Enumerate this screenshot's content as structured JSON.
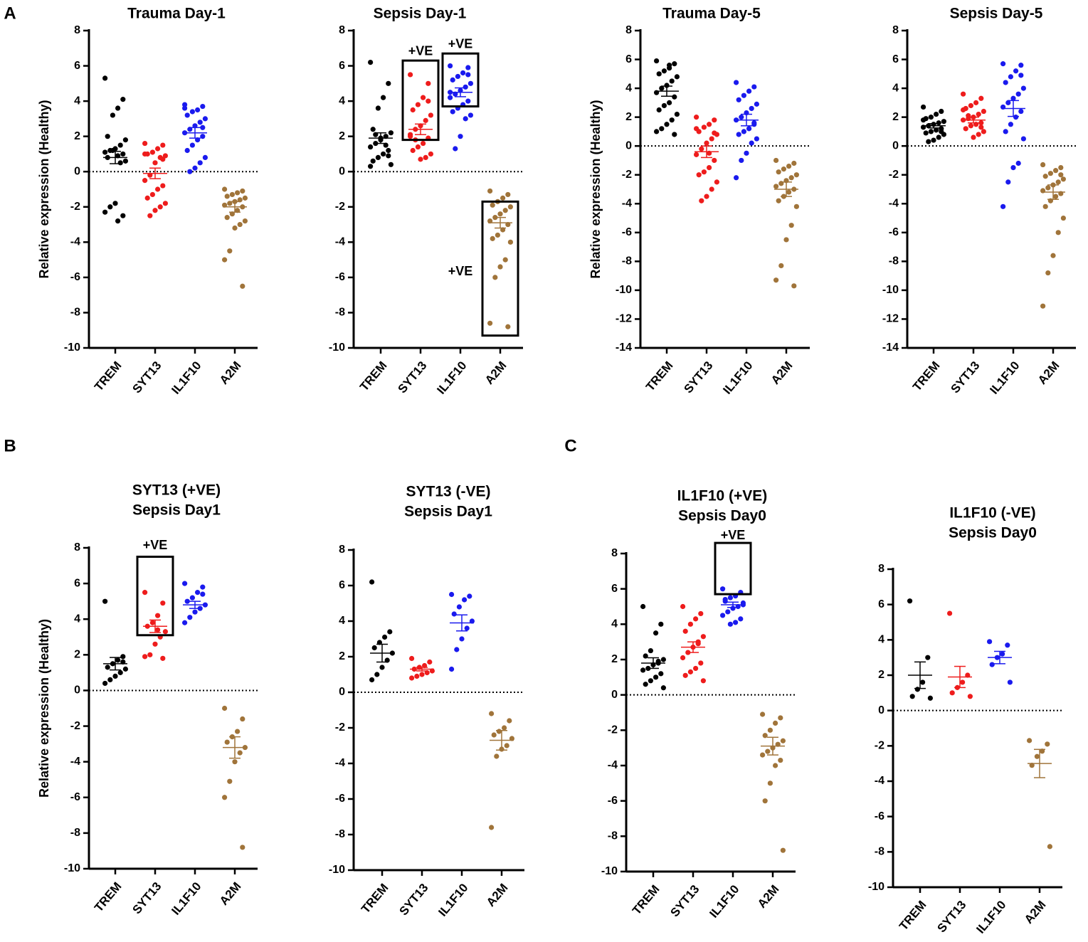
{
  "panel_labels": [
    "A",
    "B",
    "C"
  ],
  "chart_data": [
    {
      "type": "strip",
      "title": [
        "Trauma Day-1"
      ],
      "ylabel": "Relative expression (Healthy)",
      "ylim": [
        -10,
        8
      ],
      "yticks": [
        -10,
        -8,
        -6,
        -4,
        -2,
        0,
        2,
        4,
        6,
        8
      ],
      "hline": 0,
      "series": [
        {
          "name": "TREM",
          "color": "#000000",
          "values": [
            5.3,
            4.1,
            3.6,
            3.2,
            2.0,
            1.8,
            1.5,
            1.3,
            1.2,
            1.1,
            1.0,
            0.9,
            1.2,
            0.8,
            0.6,
            0.5,
            -1.8,
            -2.0,
            -2.3,
            -2.5,
            -2.8
          ],
          "mean": 0.8,
          "sem": 0.35
        },
        {
          "name": "SYT13",
          "color": "#ee1c1c",
          "values": [
            1.6,
            1.5,
            1.3,
            1.1,
            1.0,
            0.9,
            0.8,
            0.5,
            -0.2,
            -0.5,
            -0.8,
            -1.0,
            -1.3,
            -1.5,
            -1.8,
            -2.0,
            -2.2,
            -2.5,
            1.0,
            0.7
          ],
          "mean": -0.1,
          "sem": 0.3
        },
        {
          "name": "IL1F10",
          "color": "#1a1aee",
          "values": [
            3.8,
            3.7,
            3.5,
            3.4,
            3.2,
            3.0,
            2.8,
            2.6,
            2.4,
            2.2,
            2.0,
            1.8,
            1.5,
            1.2,
            0.8,
            0.5,
            0.2,
            0,
            3.6,
            2.5
          ],
          "mean": 2.2,
          "sem": 0.3
        },
        {
          "name": "A2M",
          "color": "#a0743a",
          "values": [
            -1.0,
            -1.1,
            -1.2,
            -1.3,
            -1.4,
            -1.5,
            -1.6,
            -1.7,
            -1.8,
            -1.9,
            -2.0,
            -2.2,
            -2.4,
            -2.6,
            -2.8,
            -3.0,
            -3.2,
            -4.5,
            -5.0,
            -6.5
          ],
          "mean": -2.0,
          "sem": 0.3
        }
      ]
    },
    {
      "type": "strip",
      "title": [
        "Sepsis Day-1"
      ],
      "ylim": [
        -10,
        8
      ],
      "yticks": [
        -10,
        -8,
        -6,
        -4,
        -2,
        0,
        2,
        4,
        6,
        8
      ],
      "hline": 0,
      "series": [
        {
          "name": "TREM",
          "color": "#000000",
          "values": [
            6.2,
            5.0,
            4.2,
            3.6,
            2.4,
            2.2,
            2.0,
            1.8,
            1.6,
            1.4,
            1.2,
            1.0,
            0.8,
            0.6,
            0.4,
            1.5,
            1.9,
            2.1,
            0.3,
            0.9
          ],
          "mean": 1.9,
          "sem": 0.3
        },
        {
          "name": "SYT13",
          "color": "#ee1c1c",
          "values": [
            5.5,
            5.0,
            4.2,
            3.8,
            3.5,
            3.2,
            2.9,
            2.6,
            2.4,
            2.1,
            1.9,
            1.6,
            1.4,
            1.2,
            1.0,
            0.8,
            0.7,
            1.8,
            2.0,
            4.0
          ],
          "mean": 2.4,
          "sem": 0.3
        },
        {
          "name": "IL1F10",
          "color": "#1a1aee",
          "values": [
            6.0,
            5.9,
            5.6,
            5.4,
            5.2,
            5.0,
            4.8,
            4.6,
            4.4,
            4.2,
            4.0,
            3.8,
            3.6,
            3.4,
            3.2,
            3.0,
            2.0,
            1.3,
            4.5,
            5.5
          ],
          "mean": 4.5,
          "sem": 0.25
        },
        {
          "name": "A2M",
          "color": "#a0743a",
          "values": [
            -1.1,
            -1.3,
            -1.5,
            -1.7,
            -1.9,
            -2.0,
            -2.2,
            -2.4,
            -2.6,
            -2.8,
            -3.0,
            -3.3,
            -3.6,
            -3.8,
            -4.0,
            -5.0,
            -5.4,
            -6.0,
            -8.6,
            -8.8
          ],
          "mean": -2.9,
          "sem": 0.3
        }
      ],
      "annotations": [
        {
          "text": "+VE",
          "box_category": 1,
          "box_y": [
            1.8,
            6.3
          ],
          "text_category": 1,
          "text_y": 6.8
        },
        {
          "text": "+VE",
          "box_category": 2,
          "box_y": [
            3.7,
            6.7
          ],
          "text_category": 2,
          "text_y": 7.2
        },
        {
          "text": "+VE",
          "box_category": 3,
          "box_y": [
            -9.3,
            -1.7
          ],
          "text_category": 2,
          "text_y": -5.7
        }
      ]
    },
    {
      "type": "strip",
      "title": [
        "Trauma Day-5"
      ],
      "ylabel": "Relative expression (Healthy)",
      "ylim": [
        -14,
        8
      ],
      "yticks": [
        -14,
        -12,
        -10,
        -8,
        -6,
        -4,
        -2,
        0,
        2,
        4,
        6,
        8
      ],
      "hline": 0,
      "series": [
        {
          "name": "TREM",
          "color": "#000000",
          "values": [
            5.9,
            5.7,
            5.4,
            5.2,
            5.0,
            4.8,
            4.5,
            4.2,
            4.0,
            3.7,
            3.4,
            3.0,
            2.8,
            2.5,
            2.2,
            1.8,
            1.5,
            1.2,
            1.0,
            0.8,
            5.6
          ],
          "mean": 3.8,
          "sem": 0.35
        },
        {
          "name": "SYT13",
          "color": "#ee1c1c",
          "values": [
            2.0,
            1.8,
            1.5,
            1.3,
            1.0,
            0.8,
            0.5,
            0.2,
            -0.2,
            -0.6,
            -1.0,
            -1.5,
            -1.8,
            -2.0,
            -2.5,
            -3.0,
            -3.5,
            -3.8,
            1.2,
            0.9,
            -0.5
          ],
          "mean": -0.4,
          "sem": 0.4
        },
        {
          "name": "IL1F10",
          "color": "#1a1aee",
          "values": [
            4.4,
            4.1,
            3.8,
            3.5,
            3.2,
            2.9,
            2.6,
            2.3,
            2.0,
            1.8,
            1.5,
            1.2,
            1.0,
            0.8,
            0.5,
            0.2,
            -0.5,
            -1.0,
            -2.2,
            1.6
          ],
          "mean": 1.8,
          "sem": 0.4
        },
        {
          "name": "A2M",
          "color": "#a0743a",
          "values": [
            -1.0,
            -1.2,
            -1.4,
            -1.6,
            -1.8,
            -2.0,
            -2.2,
            -2.4,
            -2.6,
            -2.8,
            -3.0,
            -3.2,
            -3.5,
            -3.8,
            -4.2,
            -5.5,
            -6.5,
            -8.3,
            -9.3,
            -9.7
          ],
          "mean": -3.0,
          "sem": 0.5
        }
      ]
    },
    {
      "type": "strip",
      "title": [
        "Sepsis Day-5"
      ],
      "ylim": [
        -14,
        8
      ],
      "yticks": [
        -14,
        -12,
        -10,
        -8,
        -6,
        -4,
        -2,
        0,
        2,
        4,
        6,
        8
      ],
      "hline": 0,
      "series": [
        {
          "name": "TREM",
          "color": "#000000",
          "values": [
            2.7,
            2.4,
            2.2,
            2.0,
            1.9,
            1.7,
            1.6,
            1.5,
            1.4,
            1.3,
            1.2,
            1.1,
            1.0,
            0.9,
            0.8,
            0.6,
            0.4,
            0.3,
            1.8,
            1.0
          ],
          "mean": 1.4,
          "sem": 0.15
        },
        {
          "name": "SYT13",
          "color": "#ee1c1c",
          "values": [
            3.6,
            3.3,
            3.0,
            2.8,
            2.6,
            2.4,
            2.2,
            2.0,
            1.9,
            1.8,
            1.6,
            1.5,
            1.4,
            1.2,
            1.0,
            0.8,
            0.6,
            2.1,
            2.5,
            1.3
          ],
          "mean": 1.8,
          "sem": 0.2
        },
        {
          "name": "IL1F10",
          "color": "#1a1aee",
          "values": [
            5.7,
            5.6,
            5.2,
            4.8,
            4.4,
            4.0,
            3.6,
            3.3,
            3.0,
            2.7,
            2.4,
            2.0,
            1.5,
            1.0,
            0.5,
            -1.2,
            -1.5,
            -2.5,
            -4.2,
            4.9
          ],
          "mean": 2.6,
          "sem": 0.55
        },
        {
          "name": "A2M",
          "color": "#a0743a",
          "values": [
            -1.3,
            -1.5,
            -1.7,
            -1.9,
            -2.1,
            -2.3,
            -2.5,
            -2.7,
            -2.9,
            -3.1,
            -3.3,
            -3.5,
            -3.8,
            -4.2,
            -5.0,
            -6.0,
            -7.6,
            -8.8,
            -11.1,
            -2.0
          ],
          "mean": -3.2,
          "sem": 0.5
        }
      ]
    },
    {
      "type": "strip",
      "title": [
        "SYT13 (+VE)",
        "Sepsis Day1"
      ],
      "ylabel": "Relative expression (Healthy)",
      "ylim": [
        -10,
        8
      ],
      "yticks": [
        -10,
        -8,
        -6,
        -4,
        -2,
        0,
        2,
        4,
        6,
        8
      ],
      "hline": 0,
      "series": [
        {
          "name": "TREM",
          "color": "#000000",
          "values": [
            5.0,
            1.9,
            1.7,
            1.5,
            1.3,
            1.2,
            1.0,
            0.8,
            0.6,
            0.4,
            1.6
          ],
          "mean": 1.5,
          "sem": 0.35
        },
        {
          "name": "SYT13",
          "color": "#ee1c1c",
          "values": [
            5.5,
            4.9,
            4.2,
            3.8,
            3.6,
            3.3,
            3.0,
            2.6,
            2.0,
            1.9,
            1.8,
            3.4
          ],
          "mean": 3.6,
          "sem": 0.35
        },
        {
          "name": "IL1F10",
          "color": "#1a1aee",
          "values": [
            6.0,
            5.8,
            5.5,
            5.2,
            5.0,
            4.8,
            4.6,
            4.4,
            4.1,
            3.8,
            5.4
          ],
          "mean": 4.8,
          "sem": 0.2
        },
        {
          "name": "A2M",
          "color": "#a0743a",
          "values": [
            -1.0,
            -1.6,
            -2.3,
            -2.6,
            -2.9,
            -3.2,
            -3.5,
            -4.0,
            -5.1,
            -6.0,
            -8.8
          ],
          "mean": -3.2,
          "sem": 0.6
        }
      ],
      "annotations": [
        {
          "text": "+VE",
          "box_category": 1,
          "box_y": [
            3.1,
            7.5
          ],
          "text_category": 1,
          "text_y": 8.1
        }
      ]
    },
    {
      "type": "strip",
      "title": [
        "SYT13 (-VE)",
        "Sepsis Day1"
      ],
      "ylim": [
        -10,
        8
      ],
      "yticks": [
        -10,
        -8,
        -6,
        -4,
        -2,
        0,
        2,
        4,
        6,
        8
      ],
      "hline": 0,
      "series": [
        {
          "name": "TREM",
          "color": "#000000",
          "values": [
            6.2,
            3.4,
            3.1,
            2.8,
            2.5,
            2.2,
            1.8,
            1.4,
            1.0,
            0.7
          ],
          "mean": 2.2,
          "sem": 0.5
        },
        {
          "name": "SYT13",
          "color": "#ee1c1c",
          "values": [
            1.9,
            1.7,
            1.5,
            1.4,
            1.3,
            1.2,
            1.1,
            1.0,
            0.9,
            0.8
          ],
          "mean": 1.3,
          "sem": 0.1
        },
        {
          "name": "IL1F10",
          "color": "#1a1aee",
          "values": [
            5.5,
            5.4,
            5.2,
            4.8,
            4.4,
            4.0,
            3.6,
            3.0,
            2.4,
            1.3
          ],
          "mean": 3.9,
          "sem": 0.45
        },
        {
          "name": "A2M",
          "color": "#a0743a",
          "values": [
            -1.2,
            -1.6,
            -2.0,
            -2.2,
            -2.4,
            -2.6,
            -3.0,
            -3.2,
            -3.6,
            -7.6
          ],
          "mean": -2.7,
          "sem": 0.55
        }
      ]
    },
    {
      "type": "strip",
      "title": [
        "IL1F10 (+VE)",
        "Sepsis Day0"
      ],
      "ylim": [
        -10,
        8
      ],
      "yticks": [
        -10,
        -8,
        -6,
        -4,
        -2,
        0,
        2,
        4,
        6,
        8
      ],
      "hline": 0,
      "series": [
        {
          "name": "TREM",
          "color": "#000000",
          "values": [
            5.0,
            4.0,
            3.5,
            2.5,
            2.2,
            2.0,
            1.9,
            1.7,
            1.5,
            1.4,
            1.2,
            1.0,
            0.8,
            0.6,
            0.4,
            1.8
          ],
          "mean": 1.8,
          "sem": 0.3
        },
        {
          "name": "SYT13",
          "color": "#ee1c1c",
          "values": [
            5.0,
            4.6,
            4.3,
            4.0,
            3.6,
            3.3,
            3.0,
            2.7,
            2.4,
            2.1,
            1.8,
            1.5,
            1.3,
            1.1,
            0.8,
            2.9
          ],
          "mean": 2.7,
          "sem": 0.3
        },
        {
          "name": "IL1F10",
          "color": "#1a1aee",
          "values": [
            6.0,
            5.8,
            5.6,
            5.5,
            5.3,
            5.2,
            5.0,
            4.9,
            4.7,
            4.5,
            4.3,
            4.1,
            4.0,
            5.4,
            5.1
          ],
          "mean": 5.1,
          "sem": 0.15
        },
        {
          "name": "A2M",
          "color": "#a0743a",
          "values": [
            -1.1,
            -1.3,
            -1.6,
            -2.0,
            -2.3,
            -2.6,
            -2.8,
            -3.0,
            -3.2,
            -3.4,
            -3.7,
            -4.0,
            -5.0,
            -6.0,
            -8.8
          ],
          "mean": -2.9,
          "sem": 0.5
        }
      ],
      "annotations": [
        {
          "text": "+VE",
          "box_category": 2,
          "box_y": [
            5.7,
            8.6
          ],
          "text_category": 2,
          "text_y": 9.0
        }
      ]
    },
    {
      "type": "strip",
      "title": [
        "IL1F10 (-VE)",
        "Sepsis Day0"
      ],
      "ylim": [
        -10,
        8
      ],
      "yticks": [
        -10,
        -8,
        -6,
        -4,
        -2,
        0,
        2,
        4,
        6,
        8
      ],
      "hline": 0,
      "series": [
        {
          "name": "TREM",
          "color": "#000000",
          "values": [
            6.2,
            3.0,
            1.6,
            1.2,
            0.8,
            0.7
          ],
          "mean": 2.0,
          "sem": 0.75
        },
        {
          "name": "SYT13",
          "color": "#ee1c1c",
          "values": [
            5.5,
            2.0,
            1.6,
            1.3,
            1.0,
            0.8
          ],
          "mean": 1.9,
          "sem": 0.6
        },
        {
          "name": "IL1F10",
          "color": "#1a1aee",
          "values": [
            3.9,
            3.7,
            3.2,
            3.0,
            2.6,
            1.6
          ],
          "mean": 3.0,
          "sem": 0.35
        },
        {
          "name": "A2M",
          "color": "#a0743a",
          "values": [
            -1.7,
            -1.9,
            -2.3,
            -2.6,
            -3.1,
            -7.7
          ],
          "mean": -3.0,
          "sem": 0.8
        }
      ]
    }
  ]
}
